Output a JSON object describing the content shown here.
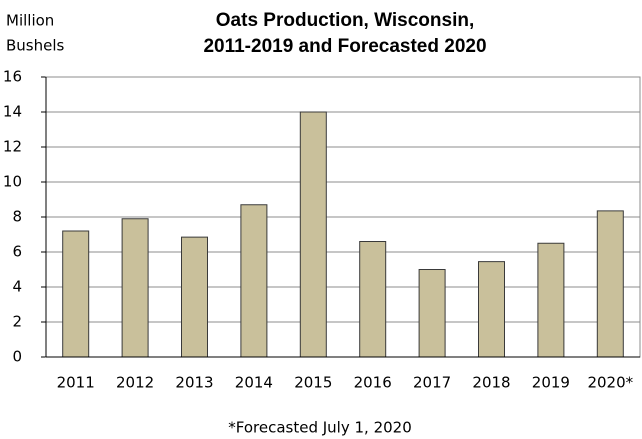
{
  "chart_data": {
    "type": "bar",
    "title": [
      "Oats Production, Wisconsin,",
      "2011-2019 and Forecasted 2020"
    ],
    "y_axis_label": [
      "Million",
      "Bushels"
    ],
    "footnote": "*Forecasted July 1, 2020",
    "categories": [
      "2011",
      "2012",
      "2013",
      "2014",
      "2015",
      "2016",
      "2017",
      "2018",
      "2019",
      "2020*"
    ],
    "values": [
      7.2,
      7.9,
      6.85,
      8.7,
      14.0,
      6.6,
      5.0,
      5.45,
      6.5,
      8.35
    ],
    "color": "#c9c09b",
    "ylim": [
      0,
      16
    ],
    "yticks": [
      0,
      2,
      4,
      6,
      8,
      10,
      12,
      14,
      16
    ],
    "grid": true
  }
}
